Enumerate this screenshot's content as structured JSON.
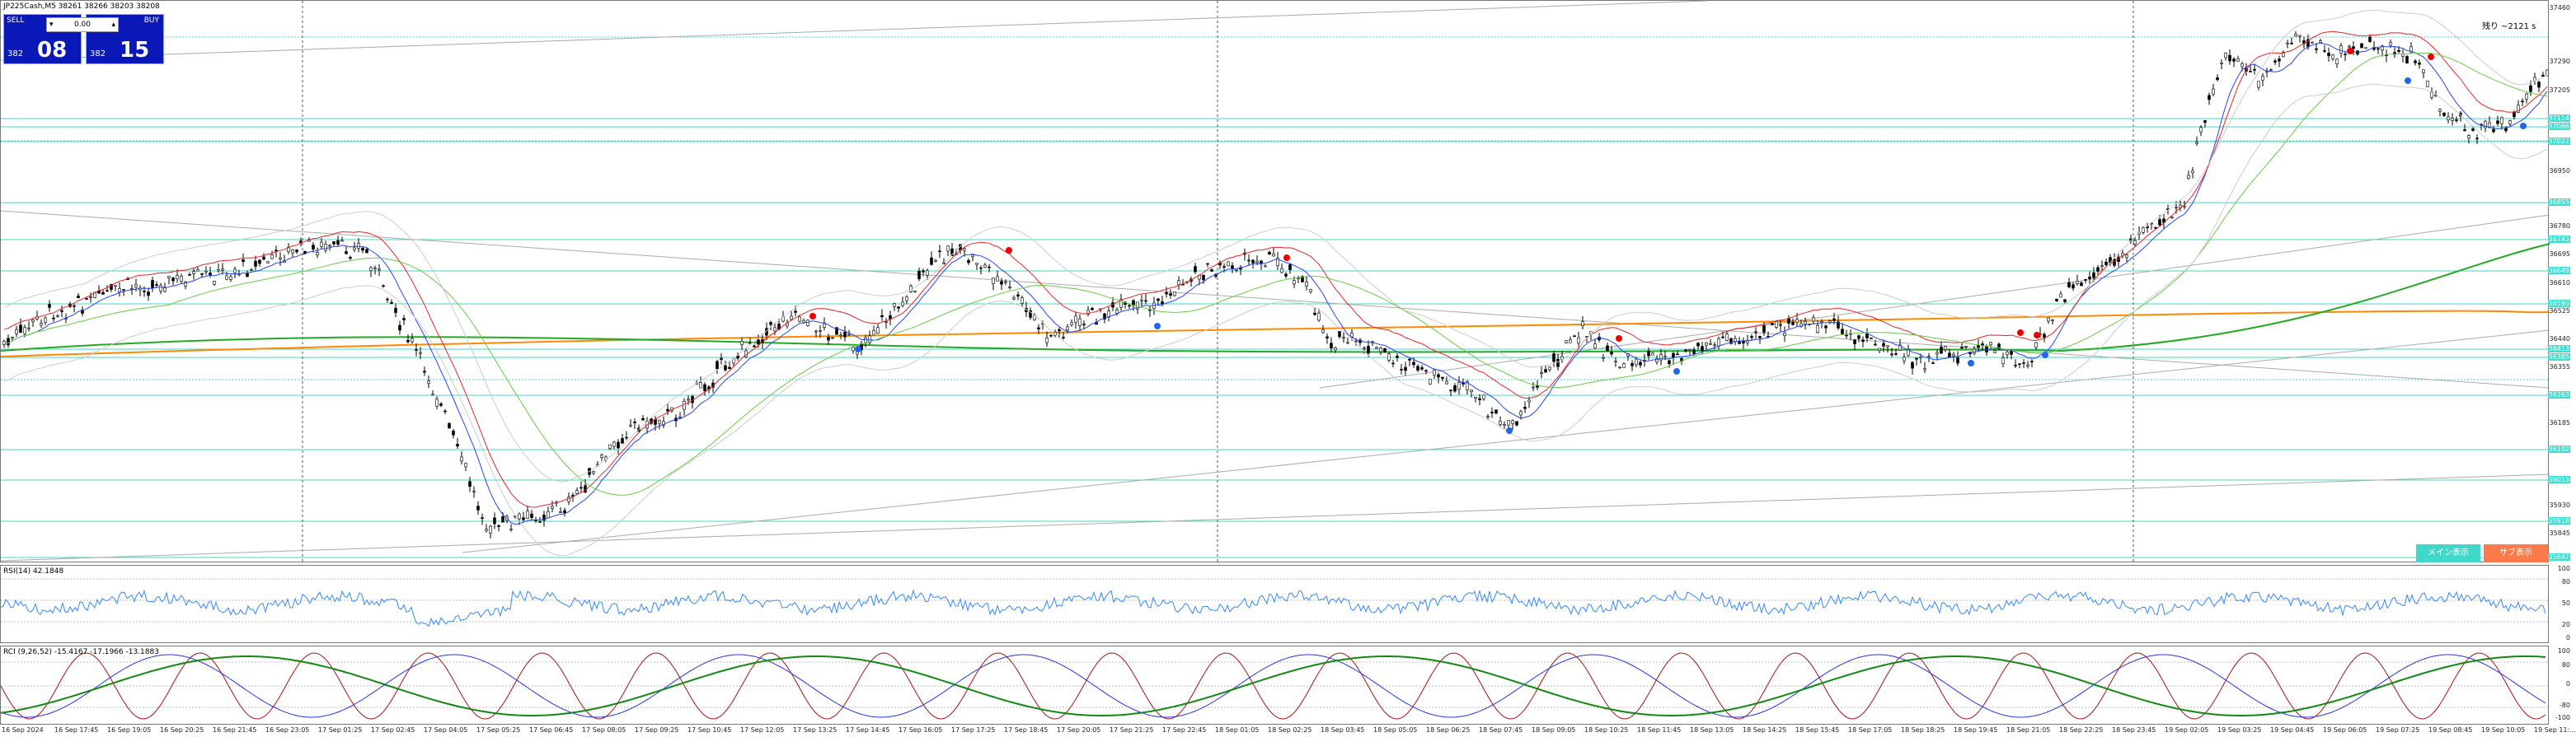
{
  "header": {
    "symbol_line": "JP225Cash,M5  38261 38266 38203 38208",
    "right_info": "残り  ~2121 s"
  },
  "trade_panel": {
    "sell_label": "SELL",
    "buy_label": "BUY",
    "lot_value": "0.00",
    "sell_small": "382",
    "sell_big": "08",
    "buy_small": "382",
    "buy_big": "15",
    "sell_color": "#0a18b8",
    "buy_color": "#0a18b8"
  },
  "main_chart": {
    "price_labels": [
      "37460",
      "37290",
      "37205",
      "36950",
      "36780",
      "36695",
      "36610",
      "36525",
      "36440",
      "36355",
      "36185",
      "35930",
      "35845"
    ],
    "highlighted_labels": [
      "37114",
      "37066",
      "37022",
      "36855",
      "36743",
      "36649",
      "36593",
      "36413",
      "36385",
      "36263",
      "36102",
      "36013",
      "35918",
      "35847"
    ]
  },
  "buttons": {
    "main_label": "メイン表示",
    "sub_label": "サブ表示",
    "main_color": "#40d8c8",
    "sub_color": "#ff7a4a"
  },
  "rsi": {
    "title": "RSI(14) 42.1848",
    "levels": [
      "100",
      "80",
      "50",
      "20",
      "0"
    ]
  },
  "rci": {
    "title": "RCI (9,26,52) -15.4167 -17.1966 -13.1883",
    "levels": [
      "100",
      "80",
      "0",
      "-80",
      "-100"
    ]
  },
  "x_axis": {
    "labels": [
      "16 Sep 2024",
      "16 Sep 17:45",
      "16 Sep 19:05",
      "16 Sep 20:25",
      "16 Sep 21:45",
      "16 Sep 23:05",
      "17 Sep 01:25",
      "17 Sep 02:45",
      "17 Sep 04:05",
      "17 Sep 05:25",
      "17 Sep 06:45",
      "17 Sep 08:05",
      "17 Sep 09:25",
      "17 Sep 10:45",
      "17 Sep 12:05",
      "17 Sep 13:25",
      "17 Sep 14:45",
      "17 Sep 16:05",
      "17 Sep 17:25",
      "17 Sep 18:45",
      "17 Sep 20:05",
      "17 Sep 21:25",
      "17 Sep 22:45",
      "18 Sep 01:05",
      "18 Sep 02:25",
      "18 Sep 03:45",
      "18 Sep 05:05",
      "18 Sep 06:25",
      "18 Sep 07:45",
      "18 Sep 09:05",
      "18 Sep 10:25",
      "18 Sep 11:45",
      "18 Sep 13:05",
      "18 Sep 14:25",
      "18 Sep 15:45",
      "18 Sep 17:05",
      "18 Sep 18:25",
      "18 Sep 19:45",
      "18 Sep 21:05",
      "18 Sep 22:25",
      "18 Sep 23:45",
      "19 Sep 02:05",
      "19 Sep 03:25",
      "19 Sep 04:45",
      "19 Sep 06:05",
      "19 Sep 07:25",
      "19 Sep 08:45",
      "19 Sep 10:05",
      "19 Sep 11:..."
    ]
  }
}
